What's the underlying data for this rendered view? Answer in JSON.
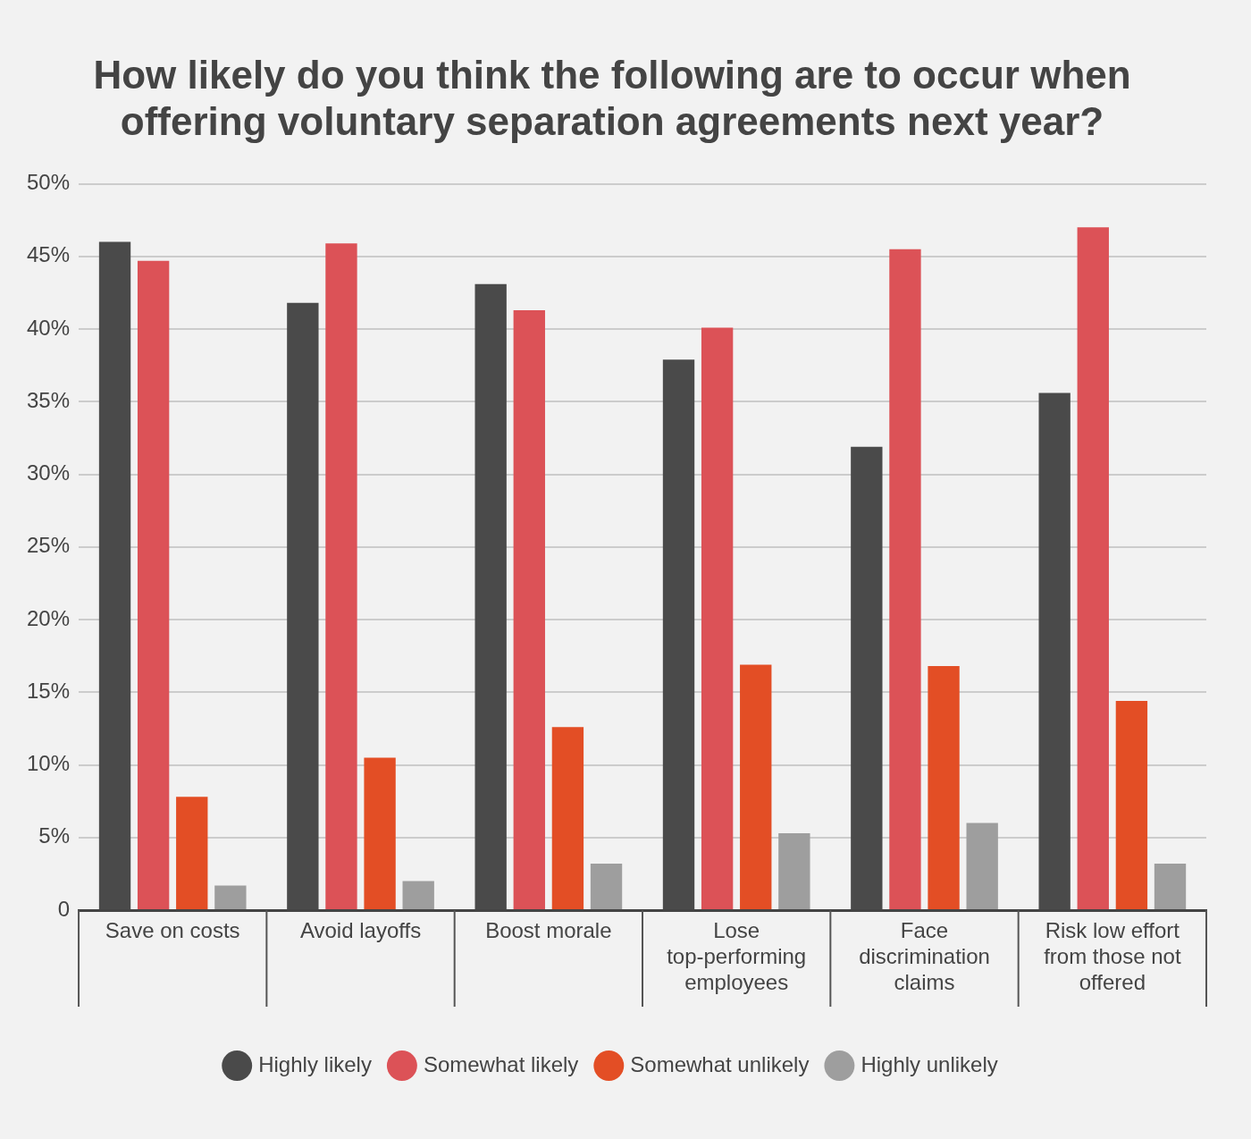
{
  "chart_data": {
    "type": "bar",
    "title": "How likely do you think the following are to occur when offering voluntary separation agreements next year?",
    "categories": [
      "Save on costs",
      "Avoid layoffs",
      "Boost morale",
      "Lose top-performing employees",
      "Face discrimination claims",
      "Risk low effort from those not offered"
    ],
    "series": [
      {
        "name": "Highly likely",
        "color": "#4a4a4a",
        "values": [
          46.0,
          41.8,
          43.1,
          37.9,
          31.9,
          35.6
        ]
      },
      {
        "name": "Somewhat likely",
        "color": "#dc5257",
        "values": [
          44.7,
          45.9,
          41.3,
          40.1,
          45.5,
          47.0
        ]
      },
      {
        "name": "Somewhat unlikely",
        "color": "#e34e25",
        "values": [
          7.8,
          10.5,
          12.6,
          16.9,
          16.8,
          14.4
        ]
      },
      {
        "name": "Highly unlikely",
        "color": "#9e9e9e",
        "values": [
          1.7,
          2.0,
          3.2,
          5.3,
          6.0,
          3.2
        ]
      }
    ],
    "ylim": [
      0,
      50
    ],
    "yticks": [
      0,
      {
        "value": 5,
        "label": "5%"
      },
      {
        "value": 10,
        "label": "10%"
      },
      {
        "value": 15,
        "label": "15%"
      },
      {
        "value": 20,
        "label": "20%"
      },
      {
        "value": 25,
        "label": "25%"
      },
      {
        "value": 30,
        "label": "30%"
      },
      {
        "value": 35,
        "label": "35%"
      },
      {
        "value": 40,
        "label": "40%"
      },
      {
        "value": 45,
        "label": "45%"
      },
      {
        "value": 50,
        "label": "50%"
      }
    ],
    "grid": "y",
    "legend": "bottom"
  }
}
